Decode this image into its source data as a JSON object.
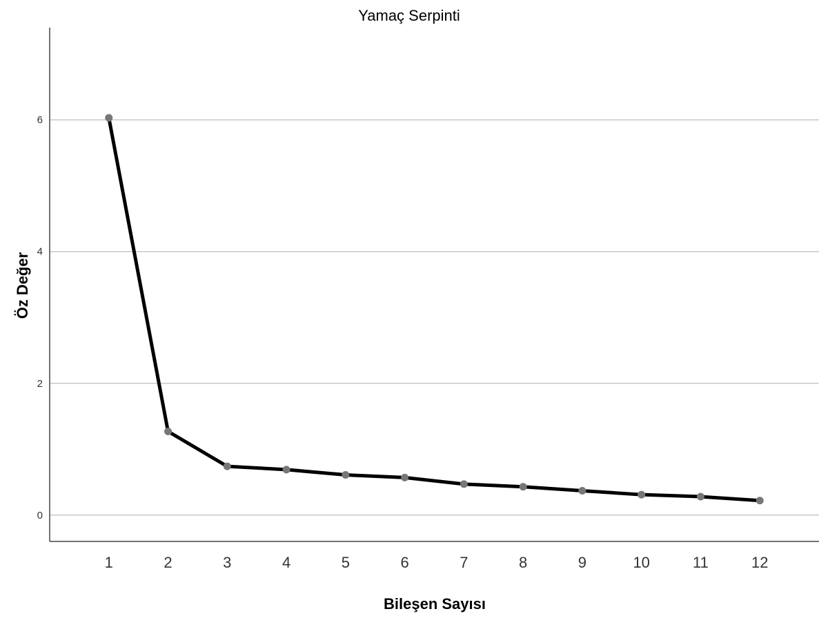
{
  "chart_data": {
    "type": "line",
    "title": "Yamaç Serpinti",
    "xlabel": "Bileşen Sayısı",
    "ylabel": "Öz Değer",
    "x": [
      1,
      2,
      3,
      4,
      5,
      6,
      7,
      8,
      9,
      10,
      11,
      12
    ],
    "series": [
      {
        "values": [
          6.03,
          1.27,
          0.74,
          0.69,
          0.61,
          0.57,
          0.47,
          0.43,
          0.37,
          0.31,
          0.28,
          0.22
        ]
      }
    ],
    "xlim": [
      0,
      13
    ],
    "ylim": [
      -0.4,
      7.4
    ],
    "yticks": [
      0,
      2,
      4,
      6
    ],
    "xticks": [
      1,
      2,
      3,
      4,
      5,
      6,
      7,
      8,
      9,
      10,
      11,
      12
    ],
    "grid": "horizontal",
    "legend": "none",
    "colors": {
      "line": "#000000",
      "marker": "#777777",
      "grid": "#c8c8c8",
      "axis": "#444444"
    }
  }
}
